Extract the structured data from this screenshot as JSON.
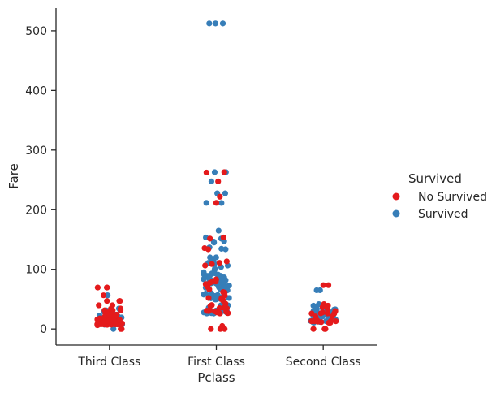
{
  "chart_data": {
    "type": "scatter",
    "kind": "stripplot",
    "xlabel": "Pclass",
    "ylabel": "Fare",
    "categories": [
      "Third Class",
      "First Class",
      "Second Class"
    ],
    "ylim": [
      -27,
      538
    ],
    "yticks": [
      0,
      100,
      200,
      300,
      400,
      500
    ],
    "legend": {
      "title": "Survived",
      "placement": "right",
      "entries": [
        {
          "label": "No Survived",
          "color": "#e41a1c"
        },
        {
          "label": "Survived",
          "color": "#377eb8"
        }
      ]
    },
    "series": [
      {
        "name": "No Survived",
        "color": "#e41a1c",
        "points": {
          "Third Class": [
            7.25,
            7.9,
            8.05,
            8.05,
            8.46,
            7.75,
            7.75,
            7.9,
            8.05,
            9.5,
            10.5,
            11.13,
            14.45,
            14.5,
            15.25,
            16.1,
            17.8,
            18.0,
            20.21,
            20.58,
            21.08,
            22.02,
            23.45,
            24.15,
            25.47,
            27.9,
            29.13,
            31.27,
            31.39,
            34.38,
            39.69,
            46.9,
            46.9,
            56.5,
            69.55,
            69.55,
            69.55,
            0,
            0,
            6.24,
            7.05,
            7.23,
            7.73,
            7.83,
            7.88,
            8.66,
            9.22,
            9.48,
            12.47,
            13.42,
            14.11,
            15.5,
            19.96,
            24.15,
            27.9,
            31.33,
            34.02,
            39.69,
            46.9,
            7.75,
            7.92
          ],
          "First Class": [
            0,
            0,
            0,
            5.0,
            26.55,
            27.72,
            28.5,
            30.0,
            30.5,
            31.0,
            34.65,
            35.5,
            38.5,
            40.13,
            42.4,
            47.1,
            50.0,
            51.86,
            52.0,
            55.9,
            61.18,
            61.98,
            66.6,
            71.0,
            75.24,
            77.29,
            79.2,
            79.65,
            83.16,
            106.43,
            108.9,
            110.88,
            113.28,
            133.65,
            135.63,
            151.55,
            153.46,
            211.5,
            221.78,
            247.52,
            262.38,
            263.0,
            29.7,
            26.0,
            35.0,
            39.6
          ],
          "Second Class": [
            0,
            0,
            0,
            10.5,
            11.5,
            13.0,
            13.0,
            13.0,
            13.5,
            15.05,
            21.0,
            26.0,
            26.0,
            26.25,
            27.72,
            30.07,
            32.5,
            36.75,
            39.0,
            41.58,
            73.5,
            73.5,
            10.5,
            12.35,
            14.5,
            26.0,
            13.0,
            21.0
          ]
        }
      },
      {
        "name": "Survived",
        "color": "#377eb8",
        "points": {
          "Third Class": [
            0,
            7.23,
            7.75,
            7.78,
            7.92,
            8.05,
            8.52,
            9.22,
            9.84,
            11.13,
            11.13,
            12.48,
            13.42,
            15.25,
            15.5,
            15.74,
            16.7,
            18.79,
            19.26,
            20.58,
            22.36,
            23.25,
            24.15,
            25.47,
            29.13,
            31.28,
            31.39,
            34.38,
            56.5,
            56.5,
            7.92,
            8.66,
            9.5,
            12.29,
            14.46,
            15.9,
            19.26
          ],
          "First Class": [
            512.33,
            512.33,
            512.33,
            263.0,
            263.0,
            262.38,
            247.52,
            227.53,
            227.53,
            211.34,
            211.5,
            164.87,
            153.46,
            151.55,
            146.52,
            134.5,
            120.0,
            113.28,
            110.88,
            108.9,
            106.43,
            93.5,
            91.08,
            90.0,
            89.1,
            86.5,
            83.48,
            82.17,
            80.0,
            79.2,
            78.27,
            77.96,
            76.73,
            75.25,
            71.28,
            69.3,
            66.6,
            57.98,
            56.93,
            55.44,
            53.1,
            52.55,
            51.48,
            49.5,
            39.6,
            35.5,
            31.0,
            30.5,
            29.7,
            27.72,
            26.55,
            26.29,
            25.93,
            86.5,
            83.16,
            76.29,
            57.0,
            52.0,
            120.0,
            110.88,
            91.08,
            89.1,
            81.86,
            79.65,
            75.24,
            69.3,
            65.0,
            59.4,
            55.0,
            49.5,
            30.0,
            26.55,
            133.65,
            136.78,
            147.0,
            145.0,
            99.0,
            95.0,
            93.0,
            83.0,
            80.0,
            78.85,
            73.0,
            71.0,
            63.36,
            60.0,
            57.75,
            55.0,
            51.86,
            50.5,
            40.0,
            36.0,
            30.7,
            28.0,
            27.0,
            31.68,
            26.0,
            88.0,
            85.0,
            66.0,
            101.0,
            115.0,
            104.0,
            28.5
          ],
          "Second Class": [
            65.0,
            65.0,
            41.58,
            39.0,
            36.75,
            33.0,
            30.0,
            29.0,
            27.75,
            26.25,
            26.0,
            23.0,
            21.0,
            19.5,
            16.0,
            14.5,
            13.5,
            13.0,
            12.65,
            11.5,
            10.5,
            30.07,
            26.0,
            23.0,
            18.75,
            13.0,
            12.0,
            36.0,
            35.0,
            32.5,
            26.0,
            24.0,
            22.0,
            20.0,
            15.75,
            13.86,
            33.5
          ]
        }
      }
    ]
  }
}
